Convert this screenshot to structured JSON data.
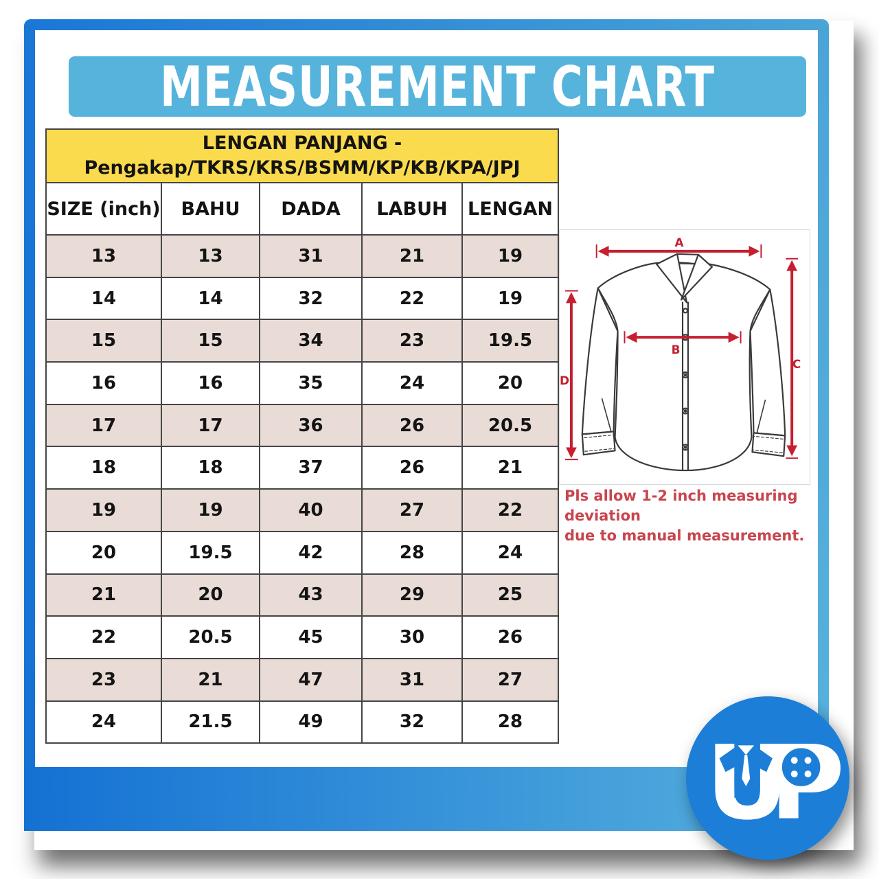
{
  "title": "MEASUREMENT CHART",
  "table": {
    "banner_line1": "LENGAN PANJANG -",
    "banner_line2": "Pengakap/TKRS/KRS/BSMM/KP/KB/KPA/JPJ",
    "columns": [
      "SIZE (inch)",
      "BAHU",
      "DADA",
      "LABUH",
      "LENGAN"
    ],
    "rows": [
      [
        "13",
        "13",
        "31",
        "21",
        "19"
      ],
      [
        "14",
        "14",
        "32",
        "22",
        "19"
      ],
      [
        "15",
        "15",
        "34",
        "23",
        "19.5"
      ],
      [
        "16",
        "16",
        "35",
        "24",
        "20"
      ],
      [
        "17",
        "17",
        "36",
        "26",
        "20.5"
      ],
      [
        "18",
        "18",
        "37",
        "26",
        "21"
      ],
      [
        "19",
        "19",
        "40",
        "27",
        "22"
      ],
      [
        "20",
        "19.5",
        "42",
        "28",
        "24"
      ],
      [
        "21",
        "20",
        "43",
        "29",
        "25"
      ],
      [
        "22",
        "20.5",
        "45",
        "30",
        "26"
      ],
      [
        "23",
        "21",
        "47",
        "31",
        "27"
      ],
      [
        "24",
        "21.5",
        "49",
        "32",
        "28"
      ]
    ]
  },
  "diagram": {
    "labels": [
      "A",
      "B",
      "C",
      "D"
    ],
    "note_line1": "Pls allow 1-2 inch measuring deviation",
    "note_line2": "due to manual measurement."
  },
  "logo": {
    "u": "U",
    "p": "P"
  },
  "colors": {
    "frame_blue": "#1b77d6",
    "frame_light_blue": "#58b2de",
    "title_bar_blue": "#56b3dc",
    "banner_yellow": "#fbdb4e",
    "row_tint": "#e9dcd6",
    "arrow_red": "#c51f30",
    "note_red": "#c8454e",
    "logo_blue": "#1d7ed8"
  }
}
